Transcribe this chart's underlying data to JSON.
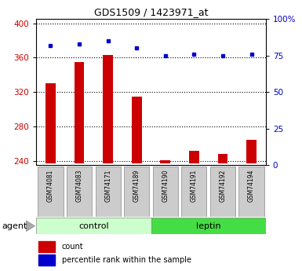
{
  "title": "GDS1509 / 1423971_at",
  "samples": [
    "GSM74081",
    "GSM74083",
    "GSM74171",
    "GSM74189",
    "GSM74190",
    "GSM74191",
    "GSM74192",
    "GSM74194"
  ],
  "counts": [
    330,
    355,
    363,
    315,
    241,
    252,
    248,
    265
  ],
  "percentiles": [
    82,
    83,
    85,
    80,
    75,
    76,
    75,
    76
  ],
  "groups": [
    "control",
    "control",
    "control",
    "control",
    "leptin",
    "leptin",
    "leptin",
    "leptin"
  ],
  "ylim_left": [
    235,
    405
  ],
  "ylim_right": [
    0,
    100
  ],
  "yticks_left": [
    240,
    280,
    320,
    360,
    400
  ],
  "ytick_labels_left": [
    "240",
    "280",
    "320",
    "360",
    "400"
  ],
  "yticks_right": [
    0,
    25,
    50,
    75,
    100
  ],
  "ytick_labels_right": [
    "0",
    "25",
    "50",
    "75",
    "100%"
  ],
  "bar_color": "#cc0000",
  "dot_color": "#0000cc",
  "control_bg_light": "#ccffcc",
  "leptin_bg_dark": "#44dd44",
  "label_bg": "#cccccc",
  "legend_count_label": "count",
  "legend_pct_label": "percentile rank within the sample",
  "agent_label": "agent",
  "bar_baseline": 237,
  "bar_width": 0.35,
  "title_fontsize": 9,
  "axis_fontsize": 7.5,
  "sample_fontsize": 5.5,
  "group_fontsize": 8,
  "legend_fontsize": 7
}
